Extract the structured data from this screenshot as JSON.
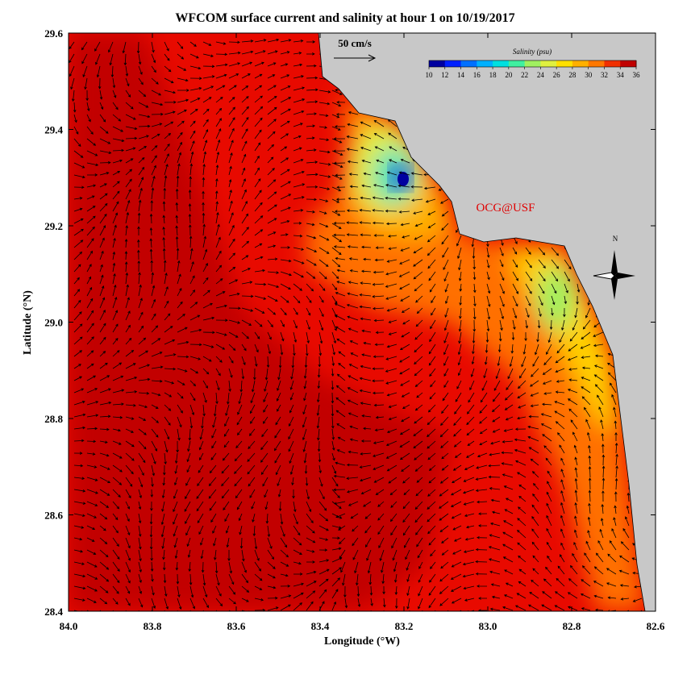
{
  "title": "WFCOM surface current and salinity at hour 1 on 10/19/2017",
  "x_axis": {
    "label": "Longitude (°W)",
    "lim": [
      84.0,
      82.6
    ],
    "ticks": [
      {
        "value": 84.0,
        "label": "84.0"
      },
      83.8,
      83.6,
      83.4,
      83.2,
      {
        "value": 83.0,
        "label": "83.0"
      },
      82.8,
      82.6
    ]
  },
  "y_axis": {
    "label": "Latitude (°N)",
    "lim": [
      28.4,
      29.6
    ],
    "ticks": [
      28.4,
      28.6,
      28.8,
      {
        "value": 29.0,
        "label": "29.0"
      },
      29.2,
      29.4,
      29.6
    ]
  },
  "colorbar": {
    "title": "Salinity (psu)",
    "lim": [
      10,
      36
    ],
    "ticks": [
      10,
      12,
      14,
      16,
      18,
      20,
      22,
      24,
      26,
      28,
      30,
      32,
      34,
      36
    ],
    "colors": [
      "#0000a0",
      "#0020ff",
      "#0070ff",
      "#00b0ff",
      "#00e0e0",
      "#40f0a0",
      "#a0f060",
      "#e0f040",
      "#ffe000",
      "#ffb000",
      "#ff7800",
      "#f03000",
      "#c00000"
    ]
  },
  "scale_label": "50 cm/s",
  "credit": "OCG@USF",
  "compass": "N"
}
